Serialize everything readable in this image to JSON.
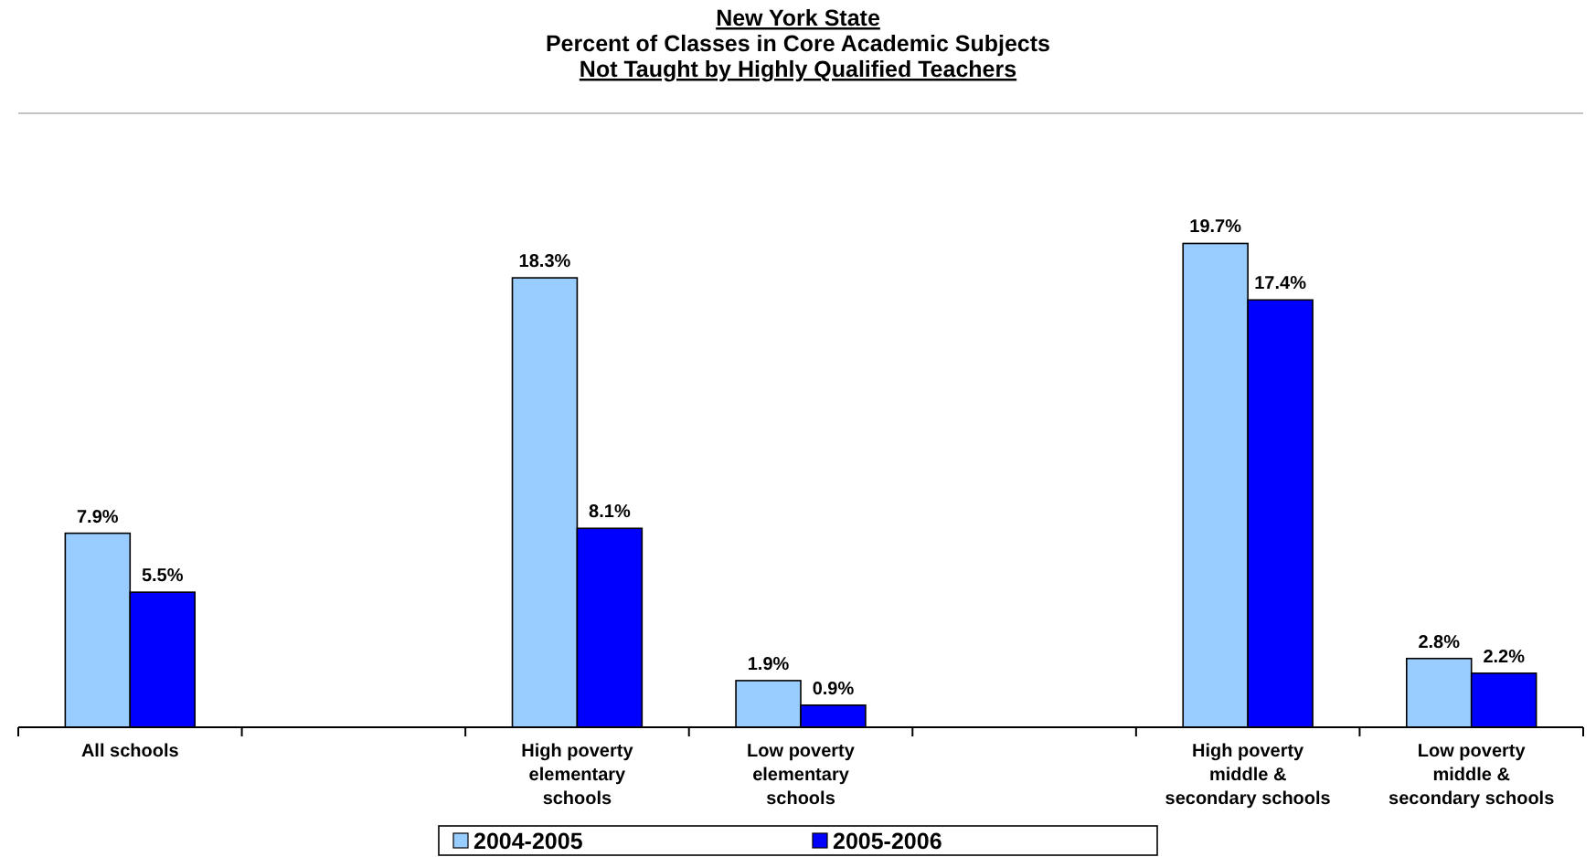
{
  "chart_data": {
    "type": "bar",
    "title": "New York State\nPercent of Classes in Core Academic Subjects\nNot Taught by Highly Qualified Teachers",
    "categories": [
      "All schools",
      null,
      "High poverty elementary schools",
      "Low poverty elementary schools",
      null,
      "High poverty middle & secondary schools",
      "Low poverty middle & secondary schools"
    ],
    "series": [
      {
        "name": "2004-2005",
        "color": "#99ccff",
        "values": [
          7.9,
          null,
          18.3,
          1.9,
          null,
          19.7,
          2.8
        ],
        "value_labels": [
          "7.9%",
          null,
          "18.3%",
          "1.9%",
          null,
          "19.7%",
          "2.8%"
        ]
      },
      {
        "name": "2005-2006",
        "color": "#0000ff",
        "values": [
          5.5,
          null,
          8.1,
          0.9,
          null,
          17.4,
          2.2
        ],
        "value_labels": [
          "5.5%",
          null,
          "8.1%",
          "0.9%",
          null,
          "17.4%",
          "2.2%"
        ]
      }
    ],
    "ylim": [
      0,
      25
    ],
    "legend": "bottom",
    "grid": false
  }
}
